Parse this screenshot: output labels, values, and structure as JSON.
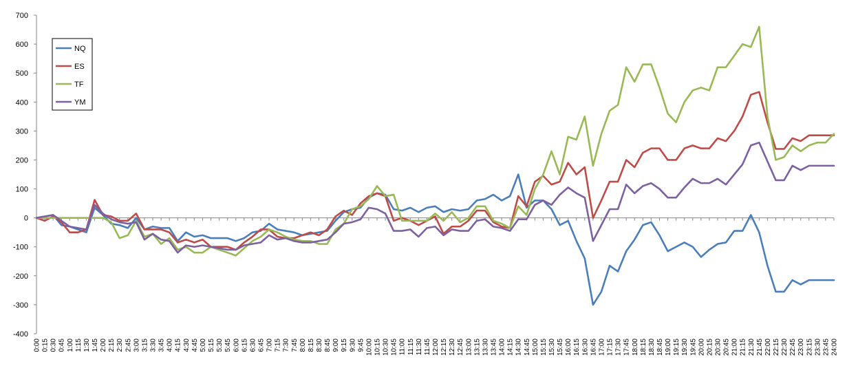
{
  "chart_data": {
    "type": "line",
    "title": "",
    "xlabel": "",
    "ylabel": "",
    "ylim": [
      -400,
      700
    ],
    "yticks": [
      -400,
      -300,
      -200,
      -100,
      0,
      100,
      200,
      300,
      400,
      500,
      600,
      700
    ],
    "grid": false,
    "legend_position": "top-left",
    "x": [
      "0:00",
      "0:15",
      "0:30",
      "0:45",
      "1:00",
      "1:15",
      "1:30",
      "1:45",
      "2:00",
      "2:15",
      "2:30",
      "2:45",
      "3:00",
      "3:15",
      "3:30",
      "3:45",
      "4:00",
      "4:15",
      "4:30",
      "4:45",
      "5:00",
      "5:15",
      "5:30",
      "5:45",
      "6:00",
      "6:15",
      "6:30",
      "6:45",
      "7:00",
      "7:15",
      "7:30",
      "7:45",
      "8:00",
      "8:15",
      "8:30",
      "8:45",
      "9:00",
      "9:15",
      "9:30",
      "9:45",
      "10:00",
      "10:15",
      "10:30",
      "10:45",
      "11:00",
      "11:15",
      "11:30",
      "11:45",
      "12:00",
      "12:15",
      "12:30",
      "12:45",
      "13:00",
      "13:15",
      "13:30",
      "13:45",
      "14:00",
      "14:15",
      "14:30",
      "14:45",
      "15:00",
      "15:15",
      "15:30",
      "15:45",
      "16:00",
      "16:15",
      "16:30",
      "16:45",
      "17:00",
      "17:15",
      "17:30",
      "17:45",
      "18:00",
      "18:15",
      "18:30",
      "18:45",
      "19:00",
      "19:15",
      "19:30",
      "19:45",
      "20:00",
      "20:15",
      "20:30",
      "20:45",
      "21:00",
      "21:15",
      "21:30",
      "21:45",
      "22:00",
      "22:15",
      "22:30",
      "22:45",
      "23:00",
      "23:15",
      "23:30",
      "23:45",
      "24:00"
    ],
    "series": [
      {
        "name": "NQ",
        "color": "#4A7EBB",
        "values": [
          0,
          5,
          10,
          -25,
          -30,
          -40,
          -50,
          35,
          10,
          -20,
          -25,
          -35,
          0,
          -40,
          -30,
          -35,
          -35,
          -80,
          -50,
          -65,
          -60,
          -70,
          -70,
          -70,
          -80,
          -70,
          -50,
          -45,
          -20,
          -40,
          -45,
          -50,
          -60,
          -55,
          -50,
          -45,
          -10,
          20,
          30,
          35,
          70,
          85,
          80,
          30,
          25,
          35,
          20,
          35,
          40,
          20,
          30,
          25,
          30,
          60,
          65,
          80,
          60,
          75,
          150,
          35,
          60,
          60,
          30,
          -25,
          -10,
          -80,
          -140,
          -300,
          -255,
          -165,
          -185,
          -115,
          -75,
          -25,
          -15,
          -60,
          -115,
          -100,
          -85,
          -100,
          -135,
          -110,
          -90,
          -85,
          -45,
          -45,
          10,
          -50,
          -165,
          -255,
          -255,
          -215,
          -230,
          -215,
          -215,
          -215,
          -215
        ]
      },
      {
        "name": "ES",
        "color": "#BE4B48",
        "values": [
          0,
          -10,
          5,
          -15,
          -50,
          -50,
          -40,
          62,
          10,
          5,
          -10,
          -10,
          15,
          -40,
          -40,
          -40,
          -50,
          -85,
          -75,
          -85,
          -75,
          -100,
          -100,
          -100,
          -110,
          -85,
          -65,
          -40,
          -40,
          -65,
          -70,
          -70,
          -60,
          -50,
          -60,
          -40,
          5,
          25,
          10,
          50,
          75,
          85,
          75,
          -10,
          0,
          -10,
          -25,
          -10,
          5,
          -55,
          -30,
          -30,
          -10,
          25,
          25,
          -15,
          -30,
          -35,
          75,
          40,
          125,
          145,
          115,
          125,
          190,
          150,
          175,
          0,
          60,
          125,
          125,
          200,
          175,
          225,
          240,
          240,
          200,
          200,
          240,
          250,
          240,
          240,
          275,
          265,
          300,
          350,
          425,
          435,
          330,
          238,
          238,
          275,
          265,
          285,
          285,
          285,
          285
        ]
      },
      {
        "name": "TF",
        "color": "#98B954",
        "values": [
          0,
          0,
          0,
          0,
          0,
          0,
          0,
          0,
          0,
          -15,
          -70,
          -60,
          -10,
          -65,
          -55,
          -90,
          -70,
          -110,
          -100,
          -120,
          -120,
          -100,
          -110,
          -120,
          -130,
          -105,
          -80,
          -65,
          -40,
          -50,
          -65,
          -75,
          -80,
          -80,
          -90,
          -90,
          -40,
          -20,
          30,
          40,
          65,
          110,
          75,
          80,
          -10,
          -10,
          -10,
          -10,
          15,
          -10,
          20,
          -15,
          0,
          40,
          40,
          -10,
          -20,
          -35,
          40,
          10,
          100,
          150,
          230,
          150,
          280,
          270,
          350,
          180,
          290,
          370,
          390,
          520,
          470,
          530,
          530,
          450,
          360,
          330,
          400,
          440,
          450,
          440,
          520,
          520,
          560,
          600,
          590,
          660,
          350,
          200,
          210,
          250,
          230,
          250,
          260,
          260,
          290
        ]
      },
      {
        "name": "YM",
        "color": "#7D60A0",
        "values": [
          0,
          5,
          10,
          -10,
          -30,
          -35,
          -40,
          45,
          15,
          -5,
          -15,
          -20,
          -15,
          -75,
          -55,
          -75,
          -80,
          -120,
          -95,
          -100,
          -95,
          -100,
          -105,
          -110,
          -110,
          -95,
          -90,
          -85,
          -60,
          -75,
          -70,
          -80,
          -85,
          -85,
          -80,
          -75,
          -50,
          -20,
          -15,
          -5,
          35,
          30,
          15,
          -45,
          -45,
          -40,
          -65,
          -35,
          -30,
          -60,
          -40,
          -45,
          -45,
          -10,
          -5,
          -30,
          -35,
          -45,
          -5,
          -5,
          45,
          60,
          45,
          80,
          105,
          85,
          70,
          -80,
          -25,
          30,
          30,
          115,
          85,
          110,
          120,
          100,
          70,
          70,
          105,
          135,
          120,
          120,
          135,
          115,
          150,
          185,
          250,
          260,
          195,
          130,
          130,
          180,
          165,
          180,
          180,
          180,
          180
        ]
      }
    ]
  }
}
